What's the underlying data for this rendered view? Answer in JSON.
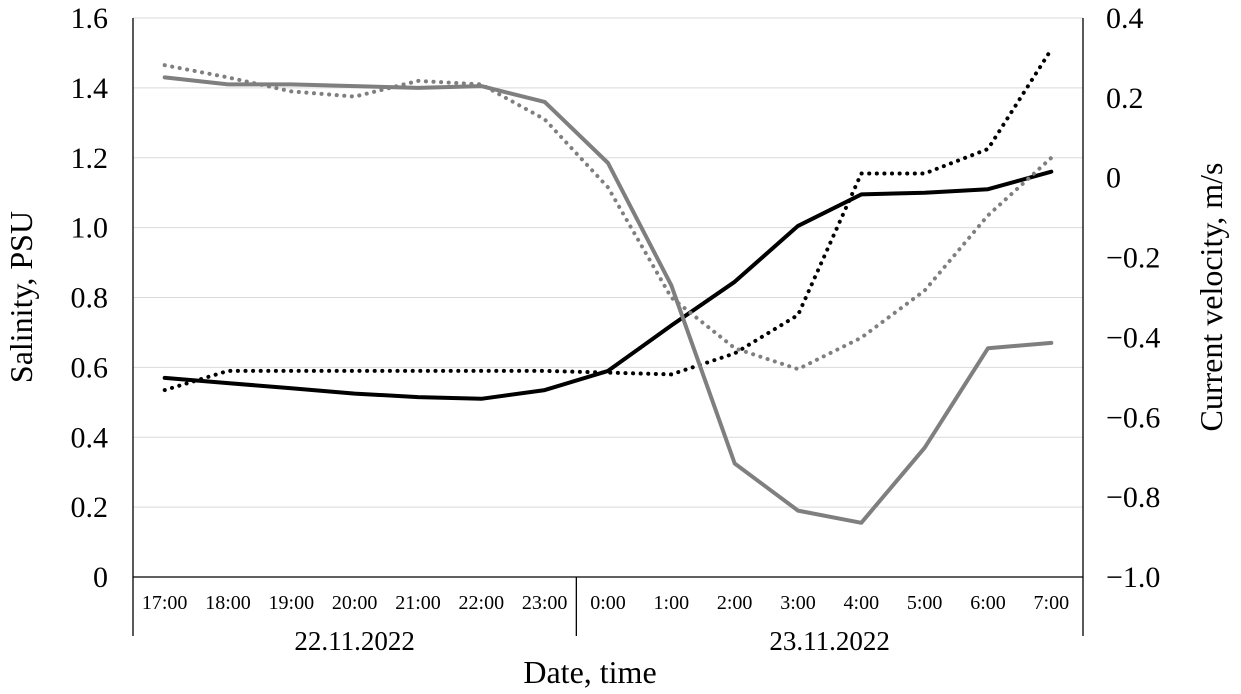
{
  "chart_data": {
    "type": "line",
    "xlabel": "Date, time",
    "ylabel_left": "Salinity, PSU",
    "ylabel_right": "Current velocity, m/s",
    "ylim_left": [
      0,
      1.6
    ],
    "ylim_right": [
      -1.0,
      0.4
    ],
    "left_ticks": [
      "0",
      "0.2",
      "0.4",
      "0.6",
      "0.8",
      "1.0",
      "1.2",
      "1.4",
      "1.6"
    ],
    "right_ticks": [
      "−1.0",
      "−0.8",
      "−0.6",
      "−0.4",
      "−0.2",
      "0",
      "0.2",
      "0.4"
    ],
    "grid": true,
    "categories": [
      "17:00",
      "18:00",
      "19:00",
      "20:00",
      "21:00",
      "22:00",
      "23:00",
      "0:00",
      "1:00",
      "2:00",
      "3:00",
      "4:00",
      "5:00",
      "6:00",
      "7:00"
    ],
    "date_groups": [
      {
        "label": "22.11.2022",
        "start": 0,
        "end": 6
      },
      {
        "label": "23.11.2022",
        "start": 7,
        "end": 14
      }
    ],
    "series": [
      {
        "axis": "left",
        "color": "#000000",
        "style": "solid",
        "values": [
          0.57,
          0.555,
          0.54,
          0.525,
          0.515,
          0.51,
          0.535,
          0.59,
          0.72,
          0.845,
          1.005,
          1.095,
          1.1,
          1.11,
          1.16
        ]
      },
      {
        "axis": "left",
        "color": "#000000",
        "style": "dotted",
        "values": [
          0.535,
          0.59,
          0.59,
          0.59,
          0.59,
          0.59,
          0.59,
          0.585,
          0.58,
          0.64,
          0.75,
          1.155,
          1.155,
          1.225,
          1.51
        ]
      },
      {
        "axis": "left",
        "color": "#7f7f7f",
        "style": "solid",
        "values": [
          1.43,
          1.41,
          1.41,
          1.405,
          1.4,
          1.405,
          1.36,
          1.185,
          0.835,
          0.325,
          0.19,
          0.155,
          0.37,
          0.655,
          0.67
        ]
      },
      {
        "axis": "left",
        "color": "#7f7f7f",
        "style": "dotted",
        "values": [
          1.465,
          1.43,
          1.39,
          1.375,
          1.42,
          1.41,
          1.31,
          1.115,
          0.8,
          0.655,
          0.595,
          0.685,
          0.82,
          1.035,
          1.2
        ]
      }
    ]
  }
}
